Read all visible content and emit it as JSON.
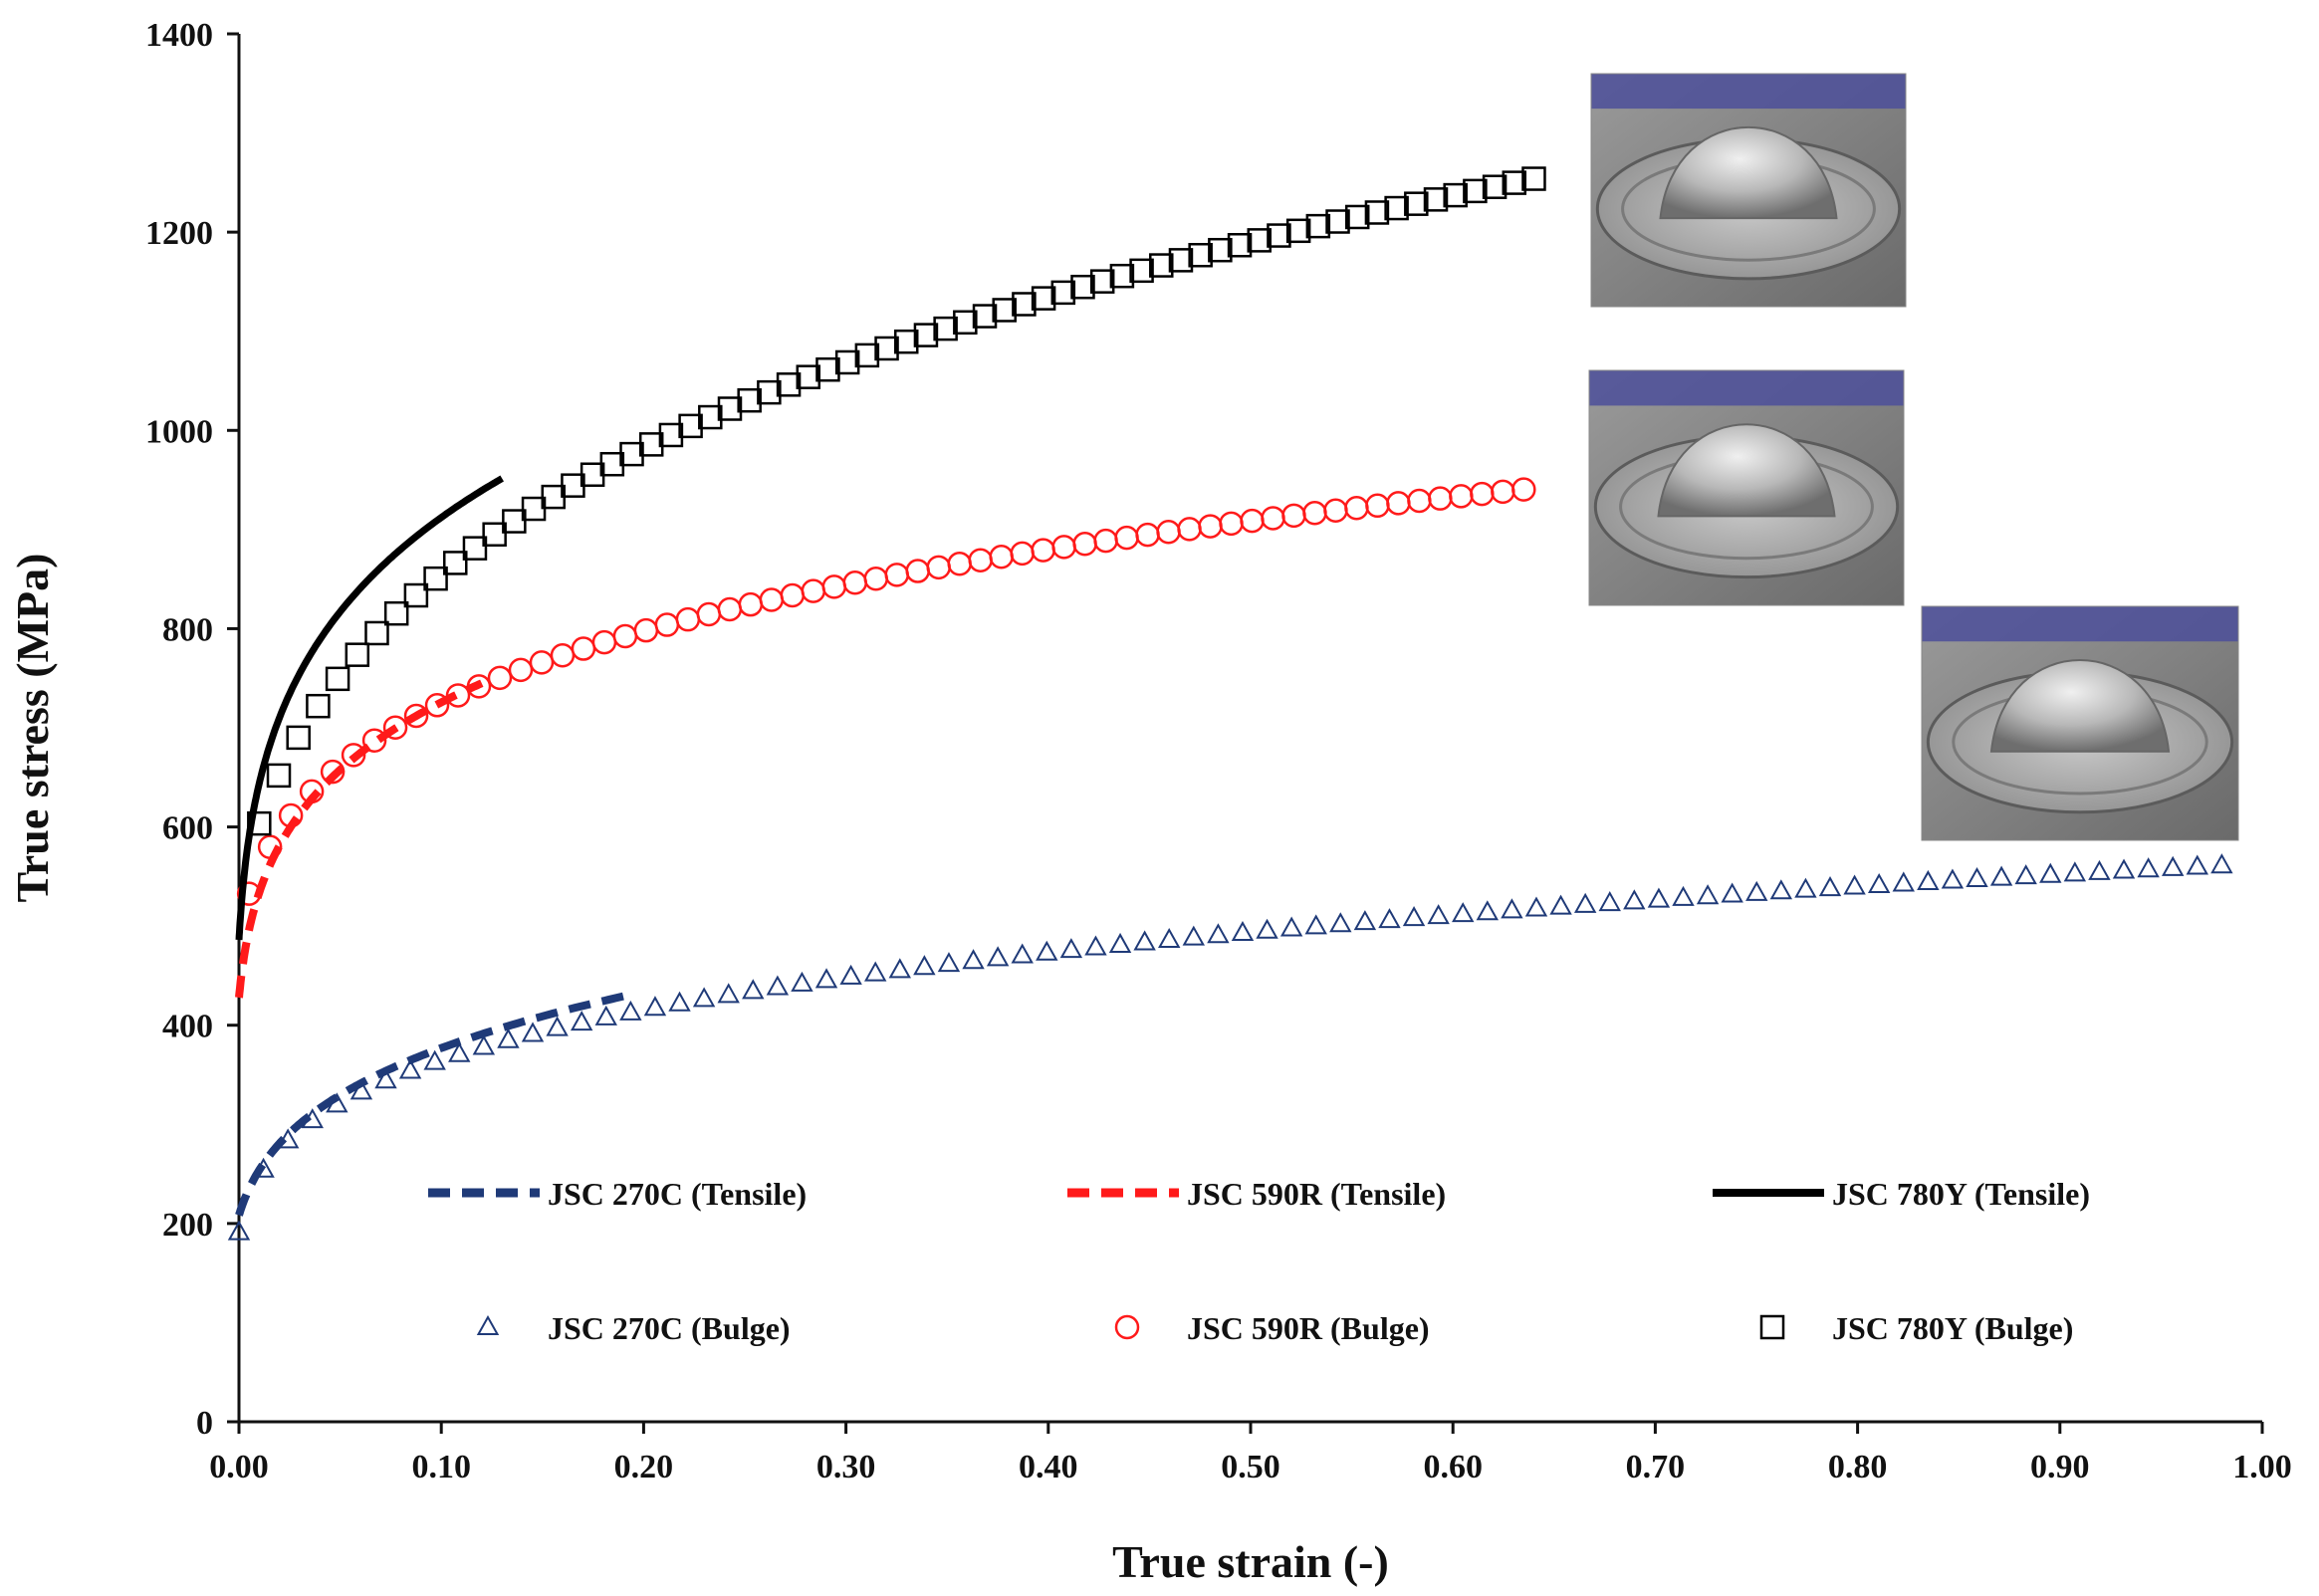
{
  "chart_data": {
    "type": "scatter",
    "title": "",
    "xlabel": "True strain (-)",
    "ylabel": "True stress (MPa)",
    "xlim": [
      0,
      1.0
    ],
    "ylim": [
      0,
      1400
    ],
    "xticks": [
      "0.00",
      "0.10",
      "0.20",
      "0.30",
      "0.40",
      "0.50",
      "0.60",
      "0.70",
      "0.80",
      "0.90",
      "1.00"
    ],
    "yticks": [
      "0",
      "200",
      "400",
      "600",
      "800",
      "1000",
      "1200",
      "1400"
    ],
    "grid": false,
    "legend_position": "lower-center",
    "colors": {
      "JSC 270C": "#1f3a78",
      "JSC 590R": "#ff1a1a",
      "JSC 780Y": "#000000"
    },
    "series": [
      {
        "name": "JSC 270C (Tensile)",
        "kind": "line-dashed",
        "color": "#1f3a78",
        "model": {
          "K": 606,
          "eps0": 0.0065,
          "n": 0.212
        },
        "x_range": [
          0,
          0.19
        ]
      },
      {
        "name": "JSC 590R (Tensile)",
        "kind": "line-dashed",
        "color": "#ff1a1a",
        "model": {
          "K": 1016,
          "eps0": 0.0029,
          "n": 0.148
        },
        "x_range": [
          0,
          0.12
        ]
      },
      {
        "name": "JSC 780Y (Tensile)",
        "kind": "line-solid",
        "color": "#000000",
        "model": {
          "K": 1326,
          "eps0": 0.0022,
          "n": 0.164
        },
        "x_range": [
          0,
          0.13
        ]
      },
      {
        "name": "JSC 270C (Bulge)",
        "kind": "marker-triangle",
        "color": "#1f3a78",
        "model": {
          "K": 563,
          "eps0": 0.0035,
          "n": 0.191
        },
        "x_range": [
          0,
          0.98
        ],
        "count": 82
      },
      {
        "name": "JSC 590R (Bulge)",
        "kind": "marker-circle",
        "color": "#ff1a1a",
        "model": {
          "K": 1003,
          "eps0": 0.0081,
          "n": 0.146
        },
        "x_range": [
          0.005,
          0.635
        ],
        "count": 62
      },
      {
        "name": "JSC 780Y (Bulge)",
        "kind": "marker-square",
        "color": "#000000",
        "model": {
          "K": 1376,
          "eps0": 0.0128,
          "n": 0.218
        },
        "x_range": [
          0.01,
          0.64
        ],
        "count": 66
      }
    ],
    "sample_points": {
      "JSC 270C (Bulge)": [
        [
          0.0,
          210
        ],
        [
          0.1,
          375
        ],
        [
          0.2,
          420
        ],
        [
          0.5,
          490
        ],
        [
          0.98,
          555
        ]
      ],
      "JSC 590R (Bulge)": [
        [
          0.01,
          490
        ],
        [
          0.1,
          705
        ],
        [
          0.3,
          830
        ],
        [
          0.5,
          895
        ],
        [
          0.635,
          930
        ]
      ],
      "JSC 780Y (Bulge)": [
        [
          0.01,
          590
        ],
        [
          0.1,
          890
        ],
        [
          0.3,
          1085
        ],
        [
          0.5,
          1185
        ],
        [
          0.64,
          1240
        ]
      ]
    },
    "annotations": [
      {
        "label": "bulge-test-specimen-photo-780Y"
      },
      {
        "label": "bulge-test-specimen-photo-590R"
      },
      {
        "label": "bulge-test-specimen-photo-270C"
      }
    ]
  }
}
